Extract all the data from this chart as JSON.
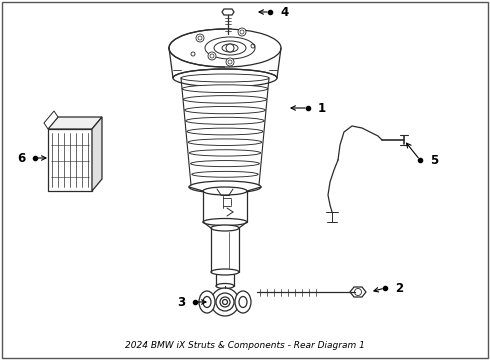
{
  "title": "2024 BMW iX Struts & Components - Rear Diagram 1",
  "bg": "#ffffff",
  "lc": "#2a2a2a",
  "fig_w": 4.9,
  "fig_h": 3.6,
  "dpi": 100
}
